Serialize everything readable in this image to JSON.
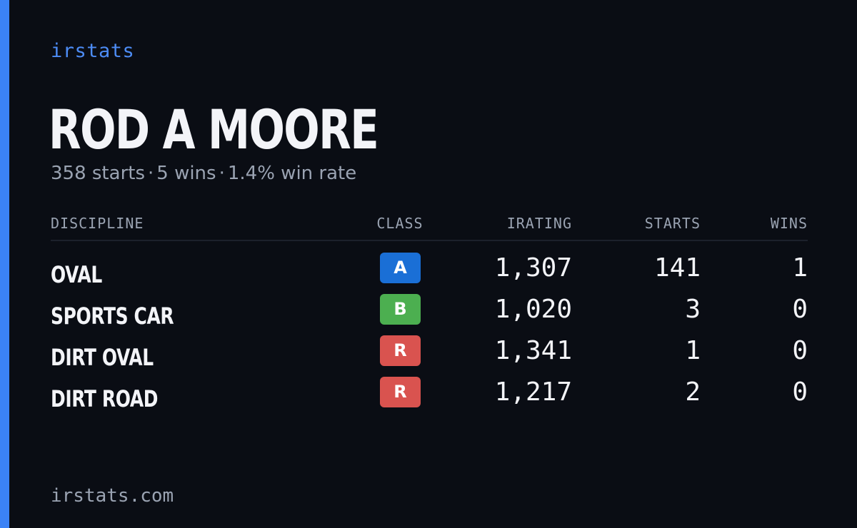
{
  "brand": "irstats",
  "driver": {
    "name": "ROD A MOORE",
    "starts_text": "358 starts",
    "wins_text": "5 wins",
    "win_rate_text": "1.4% win rate",
    "separator": "·"
  },
  "table": {
    "headers": {
      "discipline": "DISCIPLINE",
      "class": "CLASS",
      "irating": "IRATING",
      "starts": "STARTS",
      "wins": "WINS"
    },
    "rows": [
      {
        "discipline": "OVAL",
        "class": "A",
        "class_color": "#1a6fd6",
        "irating": "1,307",
        "starts": "141",
        "wins": "1"
      },
      {
        "discipline": "SPORTS CAR",
        "class": "B",
        "class_color": "#4caf50",
        "irating": "1,020",
        "starts": "3",
        "wins": "0"
      },
      {
        "discipline": "DIRT OVAL",
        "class": "R",
        "class_color": "#d9534f",
        "irating": "1,341",
        "starts": "1",
        "wins": "0"
      },
      {
        "discipline": "DIRT ROAD",
        "class": "R",
        "class_color": "#d9534f",
        "irating": "1,217",
        "starts": "2",
        "wins": "0"
      }
    ]
  },
  "footer": "irstats.com",
  "colors": {
    "background": "#0a0d14",
    "accent": "#3b82f6"
  }
}
